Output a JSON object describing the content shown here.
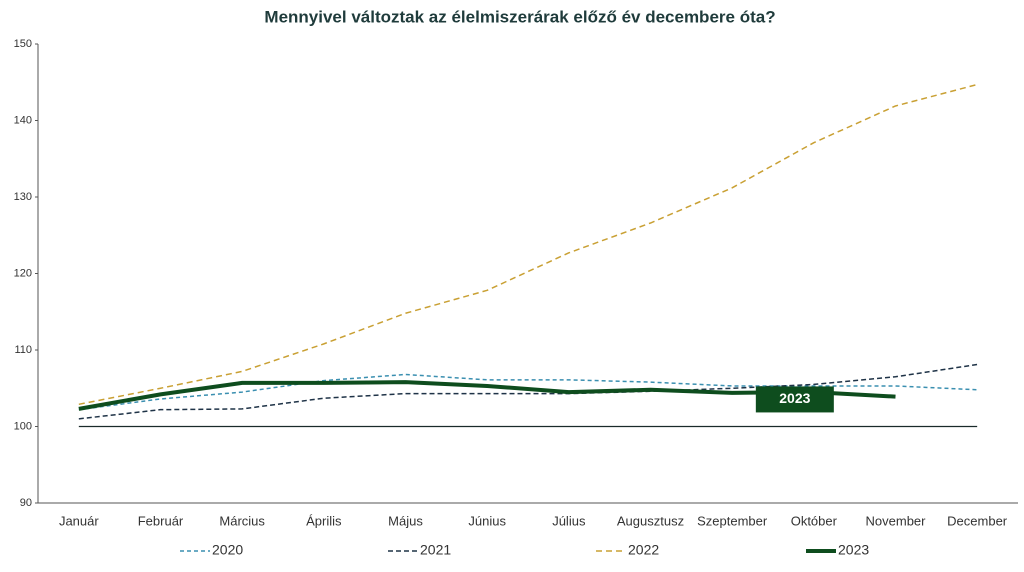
{
  "chart_data": {
    "type": "line",
    "title": "Mennyivel változtak az élelmiszerárak előző év decembere óta?",
    "categories": [
      "Január",
      "Február",
      "Március",
      "Április",
      "Május",
      "Június",
      "Július",
      "Augusztusz",
      "Szeptember",
      "Október",
      "November",
      "December"
    ],
    "series": [
      {
        "name": "2020",
        "color": "#3a8fb0",
        "dash": "4,3",
        "width": 1.5,
        "values": [
          102.2,
          103.6,
          104.5,
          106,
          106.8,
          106.1,
          106.1,
          105.8,
          105.3,
          105.3,
          105.3,
          104.8
        ]
      },
      {
        "name": "2021",
        "color": "#1f3347",
        "dash": "5,3",
        "width": 1.5,
        "values": [
          101,
          102.2,
          102.3,
          103.7,
          104.3,
          104.3,
          104.3,
          104.6,
          105,
          105.5,
          106.5,
          108.1
        ]
      },
      {
        "name": "2022",
        "color": "#c9a033",
        "dash": "6,4",
        "width": 1.5,
        "values": [
          102.9,
          105,
          107.2,
          110.8,
          114.8,
          117.8,
          122.7,
          126.6,
          131.2,
          137.1,
          141.9,
          144.7
        ]
      },
      {
        "name": "2023",
        "color": "#0e4d1e",
        "dash": "",
        "width": 4,
        "values": [
          102.3,
          104.2,
          105.7,
          105.7,
          105.8,
          105.3,
          104.5,
          104.8,
          104.4,
          104.5,
          103.9,
          null
        ]
      }
    ],
    "reference_line": 100,
    "annotation": {
      "text": "2023",
      "x": 9,
      "y": 103.8
    },
    "ylim": [
      90,
      150
    ],
    "yticks": [
      90,
      100,
      110,
      120,
      130,
      140,
      150
    ],
    "legend": "bottom"
  }
}
